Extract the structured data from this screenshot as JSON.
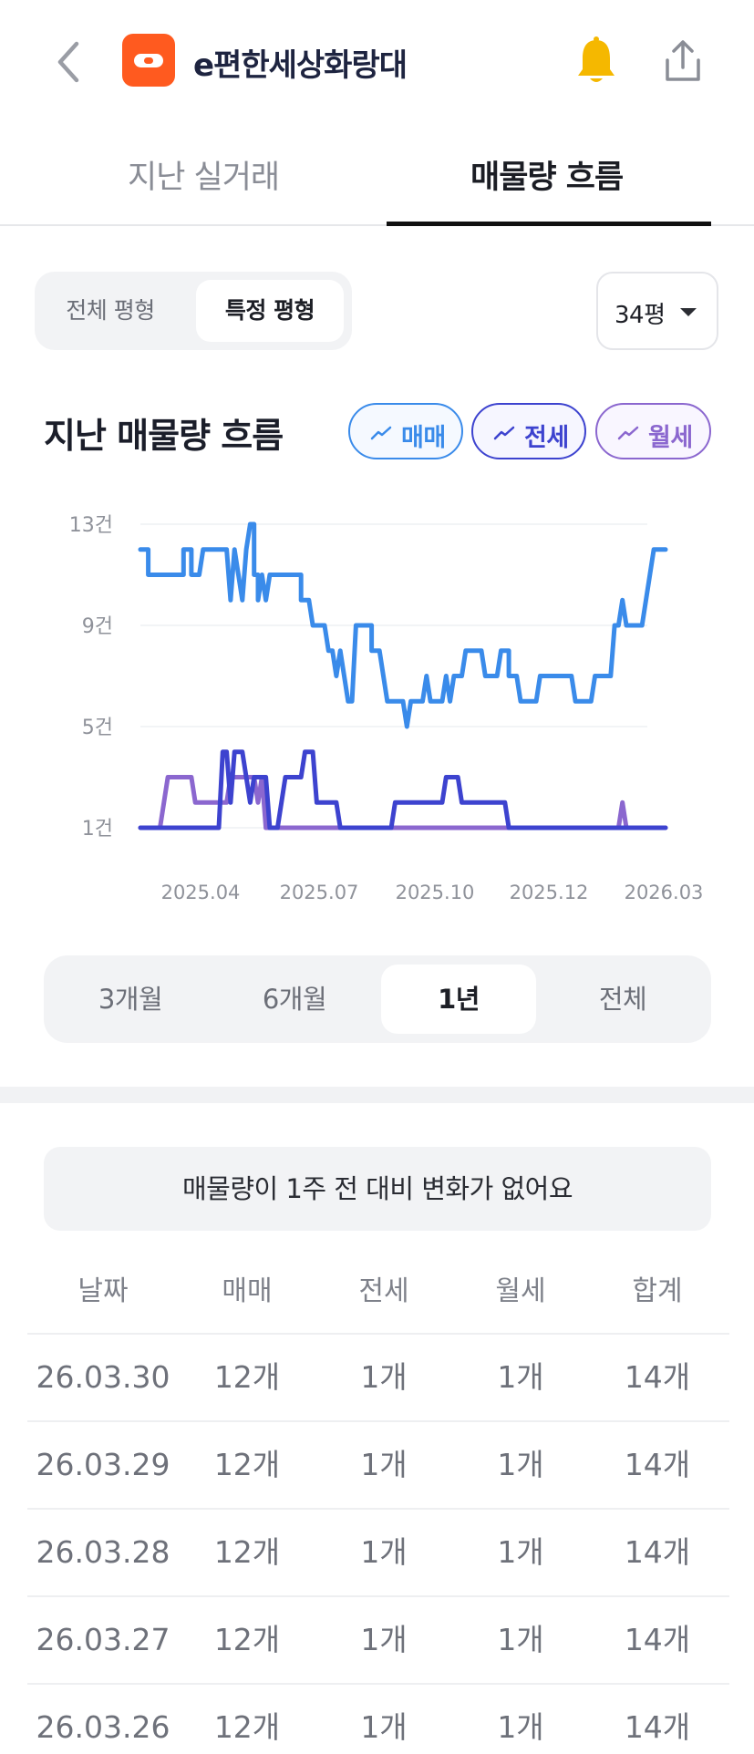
{
  "header": {
    "title": "e편한세상화랑대",
    "back_icon": "chevron-left-icon",
    "logo_color": "#ff5a1f",
    "bell_icon": "bell-icon",
    "bell_color": "#f5b800",
    "share_icon": "share-icon"
  },
  "tabs": [
    {
      "label": "지난 실거래",
      "selected": false
    },
    {
      "label": "매물량 흐름",
      "selected": true
    }
  ],
  "type_segment": {
    "options": [
      "전체 평형",
      "특정 평형"
    ],
    "selected": "특정 평형"
  },
  "size_select": {
    "value": "34평"
  },
  "section": {
    "title": "지난 매물량 흐름"
  },
  "legend": [
    {
      "label": "매매",
      "color": "#3a8bea"
    },
    {
      "label": "전세",
      "color": "#3d43cf"
    },
    {
      "label": "월세",
      "color": "#8b67cf"
    }
  ],
  "chart_data": {
    "type": "line",
    "y_ticks": [
      "13건",
      "9건",
      "5건",
      "1건"
    ],
    "ylim": [
      1,
      13
    ],
    "x_ticks": [
      "2025.04",
      "2025.07",
      "2025.10",
      "2025.12",
      "2026.03"
    ],
    "grid": true,
    "series": [
      {
        "name": "매매",
        "color": "#3a8bea",
        "points": [
          [
            0,
            12
          ],
          [
            2,
            12
          ],
          [
            2,
            11
          ],
          [
            10,
            11
          ],
          [
            11,
            11
          ],
          [
            11,
            12
          ],
          [
            13,
            12
          ],
          [
            13,
            11
          ],
          [
            15,
            11
          ],
          [
            16,
            12
          ],
          [
            22,
            12
          ],
          [
            23,
            10
          ],
          [
            24,
            12
          ],
          [
            25,
            11
          ],
          [
            26,
            10
          ],
          [
            27,
            12
          ],
          [
            28,
            13
          ],
          [
            29,
            13
          ],
          [
            29,
            11
          ],
          [
            30,
            11
          ],
          [
            30,
            10
          ],
          [
            31,
            11
          ],
          [
            32,
            10
          ],
          [
            33,
            11
          ],
          [
            41,
            11
          ],
          [
            41,
            10
          ],
          [
            43,
            10
          ],
          [
            44,
            9
          ],
          [
            47,
            9
          ],
          [
            48,
            8
          ],
          [
            49,
            8
          ],
          [
            50,
            7
          ],
          [
            51,
            8
          ],
          [
            52,
            7
          ],
          [
            53,
            6
          ],
          [
            54,
            6
          ],
          [
            55,
            9
          ],
          [
            59,
            9
          ],
          [
            59,
            8
          ],
          [
            61,
            8
          ],
          [
            62,
            7
          ],
          [
            63,
            6
          ],
          [
            67,
            6
          ],
          [
            68,
            5
          ],
          [
            69,
            6
          ],
          [
            72,
            6
          ],
          [
            73,
            7
          ],
          [
            74,
            6
          ],
          [
            77,
            6
          ],
          [
            78,
            7
          ],
          [
            79,
            6
          ],
          [
            80,
            7
          ],
          [
            82,
            7
          ],
          [
            83,
            8
          ],
          [
            87,
            8
          ],
          [
            88,
            7
          ],
          [
            91,
            7
          ],
          [
            92,
            8
          ],
          [
            94,
            8
          ],
          [
            94,
            7
          ],
          [
            96,
            7
          ],
          [
            97,
            6
          ],
          [
            101,
            6
          ],
          [
            102,
            7
          ],
          [
            110,
            7
          ],
          [
            111,
            6
          ],
          [
            115,
            6
          ],
          [
            116,
            7
          ],
          [
            120,
            7
          ],
          [
            121,
            9
          ],
          [
            122,
            9
          ],
          [
            123,
            10
          ],
          [
            124,
            9
          ],
          [
            128,
            9
          ],
          [
            129,
            10
          ],
          [
            130,
            11
          ],
          [
            131,
            12
          ],
          [
            134,
            12
          ]
        ]
      },
      {
        "name": "전세",
        "color": "#3d43cf",
        "points": [
          [
            0,
            1
          ],
          [
            20,
            1
          ],
          [
            21,
            4
          ],
          [
            22,
            4
          ],
          [
            23,
            2
          ],
          [
            24,
            4
          ],
          [
            26,
            4
          ],
          [
            27,
            3
          ],
          [
            28,
            2
          ],
          [
            29,
            3
          ],
          [
            32,
            3
          ],
          [
            33,
            1
          ],
          [
            35,
            1
          ],
          [
            36,
            2
          ],
          [
            37,
            3
          ],
          [
            41,
            3
          ],
          [
            42,
            4
          ],
          [
            44,
            4
          ],
          [
            45,
            2
          ],
          [
            50,
            2
          ],
          [
            51,
            1
          ],
          [
            64,
            1
          ],
          [
            65,
            2
          ],
          [
            77,
            2
          ],
          [
            78,
            3
          ],
          [
            81,
            3
          ],
          [
            82,
            2
          ],
          [
            93,
            2
          ],
          [
            94,
            1
          ],
          [
            134,
            1
          ]
        ]
      },
      {
        "name": "월세",
        "color": "#8b67cf",
        "points": [
          [
            0,
            1
          ],
          [
            5,
            1
          ],
          [
            6,
            2
          ],
          [
            7,
            3
          ],
          [
            13,
            3
          ],
          [
            14,
            2
          ],
          [
            22,
            2
          ],
          [
            23,
            3
          ],
          [
            29,
            3
          ],
          [
            30,
            2
          ],
          [
            31,
            3
          ],
          [
            32,
            1
          ],
          [
            122,
            1
          ],
          [
            123,
            2
          ],
          [
            124,
            1
          ],
          [
            134,
            1
          ]
        ]
      }
    ]
  },
  "period_segment": {
    "options": [
      "3개월",
      "6개월",
      "1년",
      "전체"
    ],
    "selected": "1년"
  },
  "info_message": "매물량이 1주 전 대비 변화가 없어요",
  "table": {
    "headers": [
      "날짜",
      "매매",
      "전세",
      "월세",
      "합계"
    ],
    "rows": [
      [
        "26.03.30",
        "12개",
        "1개",
        "1개",
        "14개"
      ],
      [
        "26.03.29",
        "12개",
        "1개",
        "1개",
        "14개"
      ],
      [
        "26.03.28",
        "12개",
        "1개",
        "1개",
        "14개"
      ],
      [
        "26.03.27",
        "12개",
        "1개",
        "1개",
        "14개"
      ],
      [
        "26.03.26",
        "12개",
        "1개",
        "1개",
        "14개"
      ]
    ]
  }
}
